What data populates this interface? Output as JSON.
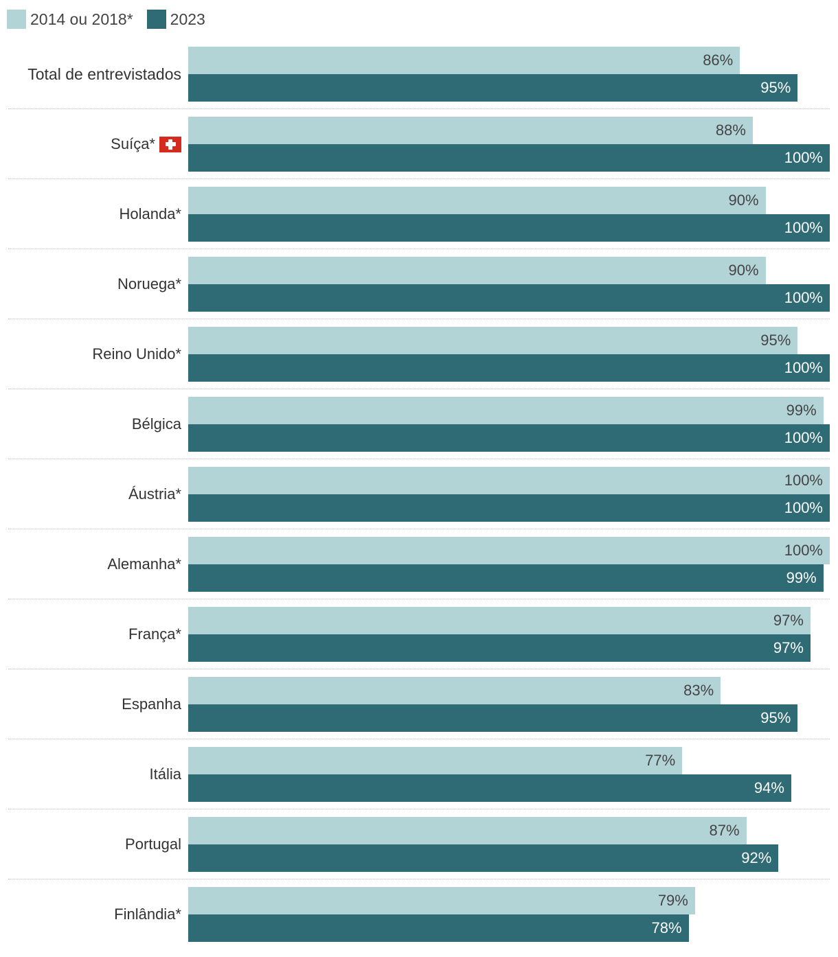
{
  "chart_data": {
    "type": "bar",
    "orientation": "horizontal",
    "colors": {
      "2014 ou 2018*": "#b3d4d7",
      "2023": "#2e6b74"
    },
    "legend": [
      "2014 ou 2018*",
      "2023"
    ],
    "xlim": [
      0,
      100
    ],
    "categories": [
      "Total de entrevistados",
      "Suíça*",
      "Holanda*",
      "Noruega*",
      "Reino Unido*",
      "Bélgica",
      "Áustria*",
      "Alemanha*",
      "França*",
      "Espanha",
      "Itália",
      "Portugal",
      "Finlândia*"
    ],
    "series": [
      {
        "name": "2014 ou 2018*",
        "values": [
          86,
          88,
          90,
          90,
          95,
          99,
          100,
          100,
          97,
          83,
          77,
          87,
          79
        ]
      },
      {
        "name": "2023",
        "values": [
          95,
          100,
          100,
          100,
          100,
          100,
          100,
          99,
          97,
          95,
          94,
          92,
          78
        ]
      }
    ],
    "flags": {
      "Suíça*": "swiss-flag"
    }
  }
}
